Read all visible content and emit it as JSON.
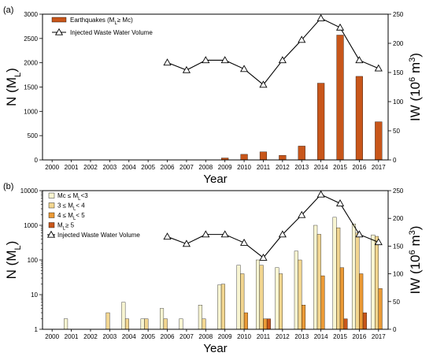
{
  "chart_data": [
    {
      "panel": "(a)",
      "type": "bar",
      "categories": [
        "2000",
        "2001",
        "2002",
        "2003",
        "2004",
        "2005",
        "2006",
        "2007",
        "2008",
        "2009",
        "2010",
        "2011",
        "2012",
        "2013",
        "2014",
        "2015",
        "2016",
        "2017"
      ],
      "series": [
        {
          "name": "Earthquakes (M_L ≥ Mc)",
          "axis": "left",
          "color": "#c8561a",
          "values": [
            2,
            2,
            2,
            0,
            0,
            0,
            0,
            0,
            0,
            40,
            115,
            165,
            95,
            285,
            1580,
            2570,
            1720,
            785
          ]
        },
        {
          "name": "Injected Waste Water Volume",
          "axis": "right",
          "type": "line",
          "marker": "triangle-open",
          "x": [
            "2006",
            "2007",
            "2008",
            "2009",
            "2010",
            "2011",
            "2012",
            "2013",
            "2014",
            "2015",
            "2016",
            "2017"
          ],
          "values": [
            167,
            154,
            171,
            171,
            156,
            129,
            171,
            206,
            243,
            227,
            171,
            157
          ]
        }
      ],
      "legend_label_main": "Earthquakes (M",
      "legend_label_sub": "L",
      "legend_label_tail": "≥ Mc)",
      "legend_line_label": "Injected Waste Water Volume",
      "ylabel_main": "N (M",
      "ylabel_sub": "L",
      "ylabel_tail": ")",
      "y2label_main": "IW (10",
      "y2label_sup": "6",
      "y2label_tail": " m",
      "y2label_sup2": "3",
      "y2label_end": ")",
      "xlabel": "Year",
      "ylim": [
        0,
        3000
      ],
      "yticks": [
        "0",
        "500",
        "1000",
        "1500",
        "2000",
        "2500",
        "3000"
      ],
      "y2lim": [
        0,
        250
      ],
      "y2ticks": [
        "0",
        "50",
        "100",
        "150",
        "200",
        "250"
      ],
      "legend_position": "top-left",
      "grid": false
    },
    {
      "panel": "(b)",
      "type": "bar",
      "yscale": "log",
      "categories": [
        "2000",
        "2001",
        "2002",
        "2003",
        "2004",
        "2005",
        "2006",
        "2007",
        "2008",
        "2009",
        "2010",
        "2011",
        "2012",
        "2013",
        "2014",
        "2015",
        "2016",
        "2017"
      ],
      "series": [
        {
          "name": "Mc ≤ M_L < 3",
          "axis": "left",
          "color": "#f8f5d2",
          "values": [
            null,
            2,
            null,
            null,
            6,
            2,
            4,
            2,
            5,
            19,
            70,
            100,
            60,
            180,
            1000,
            1700,
            1100,
            530
          ]
        },
        {
          "name": "3 ≤ M_L < 4",
          "axis": "left",
          "color": "#f2d690",
          "values": [
            null,
            null,
            null,
            3,
            2,
            2,
            2,
            null,
            2,
            20,
            40,
            70,
            40,
            100,
            550,
            850,
            600,
            480
          ]
        },
        {
          "name": "4 ≤ M_L < 5",
          "axis": "left",
          "color": "#eb9a36",
          "values": [
            null,
            null,
            null,
            null,
            null,
            null,
            null,
            null,
            null,
            null,
            3,
            2,
            null,
            5,
            35,
            60,
            40,
            15
          ]
        },
        {
          "name": "M_L ≥ 5",
          "axis": "left",
          "color": "#c8561a",
          "values": [
            null,
            null,
            null,
            null,
            null,
            null,
            null,
            null,
            null,
            null,
            null,
            2,
            null,
            null,
            null,
            2,
            3,
            null
          ]
        },
        {
          "name": "Injected Waste Water Volume",
          "axis": "right",
          "type": "line",
          "marker": "triangle-open",
          "x": [
            "2006",
            "2007",
            "2008",
            "2009",
            "2010",
            "2011",
            "2012",
            "2013",
            "2014",
            "2015",
            "2016",
            "2017"
          ],
          "values": [
            167,
            154,
            171,
            171,
            156,
            129,
            171,
            206,
            243,
            227,
            171,
            157
          ]
        }
      ],
      "legend_entries": [
        {
          "pre": "Mc ≤ M",
          "sub": "L",
          "post": "<3"
        },
        {
          "pre": "3 ≤ M",
          "sub": "L",
          "post": "< 4"
        },
        {
          "pre": "4 ≤ M",
          "sub": "L",
          "post": "< 5"
        },
        {
          "pre": "M",
          "sub": "L",
          "post": "≥ 5"
        }
      ],
      "legend_line_label": "Injected Waste Water Volume",
      "ylabel_main": "N (M",
      "ylabel_sub": "L",
      "ylabel_tail": ")",
      "y2label_main": "IW (10",
      "y2label_sup": "6",
      "y2label_tail": " m",
      "y2label_sup2": "3",
      "y2label_end": ")",
      "xlabel": "Year",
      "ylim": [
        1,
        10000
      ],
      "yticks": [
        "1",
        "10",
        "100",
        "1000",
        "10000"
      ],
      "y2lim": [
        0,
        250
      ],
      "y2ticks": [
        "0",
        "50",
        "100",
        "150",
        "200",
        "250"
      ],
      "legend_position": "top-left",
      "grid": false
    }
  ]
}
